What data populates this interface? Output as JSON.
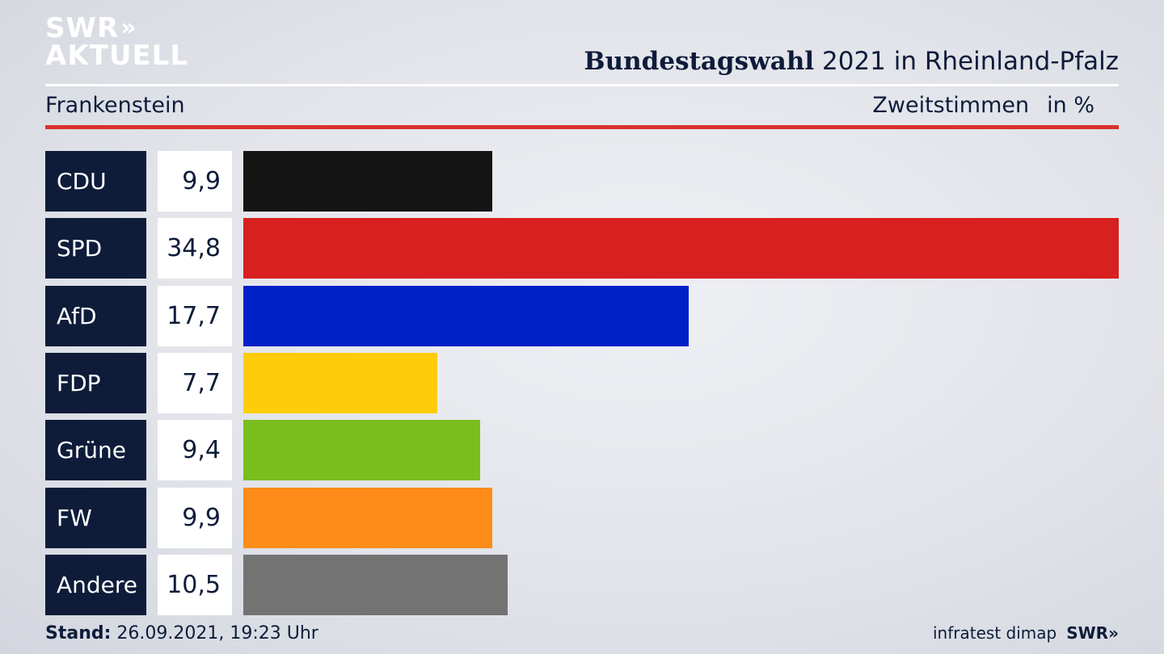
{
  "logo": {
    "line1": "SWR",
    "chevrons": "»",
    "line2": "AKTUELL"
  },
  "header": {
    "title_bold": "Bundestagswahl",
    "title_rest": " 2021 in Rheinland-Pfalz",
    "region": "Frankenstein",
    "measure": "Zweitstimmen",
    "unit": "in %"
  },
  "chart_data": {
    "type": "bar",
    "orientation": "horizontal",
    "categories": [
      "CDU",
      "SPD",
      "AfD",
      "FDP",
      "Grüne",
      "FW",
      "Andere"
    ],
    "values": [
      9.9,
      34.8,
      17.7,
      7.7,
      9.4,
      9.9,
      10.5
    ],
    "value_labels": [
      "9,9",
      "34,8",
      "17,7",
      "7,7",
      "9,4",
      "9,9",
      "10,5"
    ],
    "colors": [
      "#141414",
      "#d82020",
      "#0020c8",
      "#fecc0a",
      "#79be1d",
      "#fe8c18",
      "#737373"
    ],
    "xlim": [
      0,
      34.8
    ],
    "grid": false,
    "legend": "none"
  },
  "footer": {
    "stand_label": "Stand:",
    "stand_value": " 26.09.2021, 19:23 Uhr",
    "source": "infratest dimap",
    "brand": "SWR",
    "brand_chevrons": "»"
  }
}
